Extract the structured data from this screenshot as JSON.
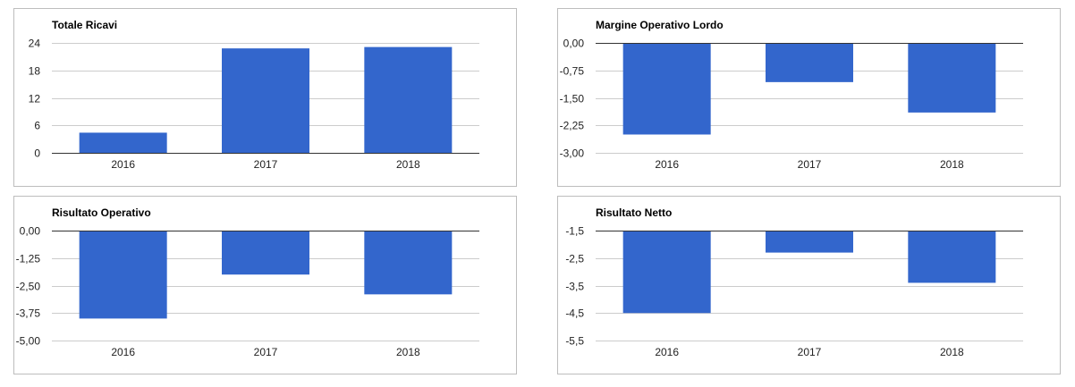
{
  "colors": {
    "bar": "#3366cc",
    "grid": "#cccccc",
    "baseline": "#333333",
    "border": "#bdbdbd"
  },
  "chart_data": [
    {
      "type": "bar",
      "title": "Totale Ricavi",
      "categories": [
        "2016",
        "2017",
        "2018"
      ],
      "values": [
        4.4,
        22.8,
        23.1
      ],
      "ylim": [
        0,
        24
      ],
      "yticks": [
        24,
        18,
        12,
        6,
        0
      ],
      "ytick_labels": [
        "24",
        "18",
        "12",
        "6",
        "0"
      ],
      "baseline": 0,
      "grid": true
    },
    {
      "type": "bar",
      "title": "Margine Operativo Lordo",
      "categories": [
        "2016",
        "2017",
        "2018"
      ],
      "values": [
        -2.5,
        -1.07,
        -1.9
      ],
      "ylim": [
        -3,
        0
      ],
      "yticks": [
        0,
        -0.75,
        -1.5,
        -2.25,
        -3
      ],
      "ytick_labels": [
        "0,00",
        "-0,75",
        "-1,50",
        "-2,25",
        "-3,00"
      ],
      "baseline": 0,
      "grid": true
    },
    {
      "type": "bar",
      "title": "Risultato Operativo",
      "categories": [
        "2016",
        "2017",
        "2018"
      ],
      "values": [
        -4.0,
        -2.0,
        -2.9
      ],
      "ylim": [
        -5,
        0
      ],
      "yticks": [
        0,
        -1.25,
        -2.5,
        -3.75,
        -5
      ],
      "ytick_labels": [
        "0,00",
        "-1,25",
        "-2,50",
        "-3,75",
        "-5,00"
      ],
      "baseline": 0,
      "grid": true
    },
    {
      "type": "bar",
      "title": "Risultato Netto",
      "categories": [
        "2016",
        "2017",
        "2018"
      ],
      "values": [
        -4.5,
        -2.3,
        -3.4
      ],
      "ylim": [
        -5.5,
        -1.5
      ],
      "yticks": [
        -1.5,
        -2.5,
        -3.5,
        -4.5,
        -5.5
      ],
      "ytick_labels": [
        "-1,5",
        "-2,5",
        "-3,5",
        "-4,5",
        "-5,5"
      ],
      "baseline": -1.5,
      "grid": true
    }
  ]
}
